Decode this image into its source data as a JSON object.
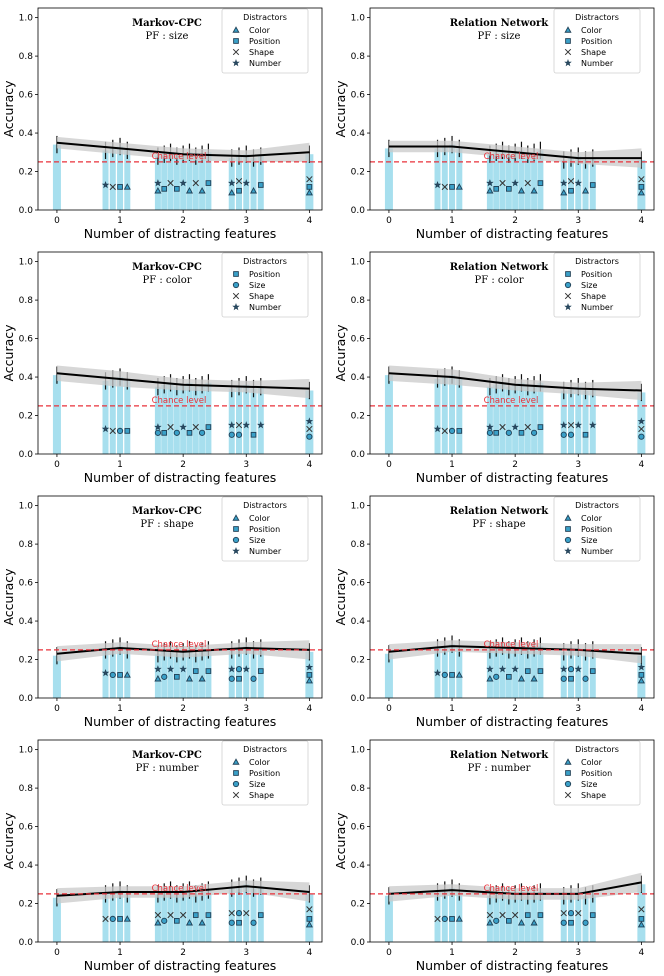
{
  "colors": {
    "bar": "#a7dfee",
    "marker": "#3aa0c8",
    "marker_edge": "#1f3f55",
    "line": "#000000",
    "band": "#c9c9c9",
    "chance": "#e8313a"
  },
  "common": {
    "xlabel": "Number of distracting features",
    "ylabel": "Accuracy",
    "chance_label": "Chance level",
    "legend_title": "Distractors",
    "x_ticks": [
      "0",
      "1",
      "2",
      "3",
      "4"
    ],
    "y_ticks": [
      "0.0",
      "0.2",
      "0.4",
      "0.6",
      "0.8",
      "1.0"
    ],
    "ylim": [
      0,
      1.05
    ],
    "xlim": [
      -0.3,
      4.2
    ],
    "chance_value": 0.25
  },
  "chart_data": [
    {
      "type": "bar",
      "model": "Markov-CPC",
      "pf_label": "PF : size",
      "distractors": [
        "Color",
        "Position",
        "Shape",
        "Number"
      ],
      "x": [
        0,
        1,
        2,
        3,
        4
      ],
      "mean_curve": [
        0.35,
        0.32,
        0.29,
        0.28,
        0.3
      ],
      "band": [
        0.03,
        0.03,
        0.03,
        0.03,
        0.05
      ],
      "marker_points": [
        [
          {
            "m": "star",
            "y": 0.13
          },
          {
            "m": "x",
            "y": 0.12
          },
          {
            "m": "square",
            "y": 0.12
          },
          {
            "m": "triangle",
            "y": 0.12
          }
        ],
        [
          {
            "m": "star",
            "y": 0.14
          },
          {
            "m": "square",
            "y": 0.11
          },
          {
            "m": "x",
            "y": 0.14
          },
          {
            "m": "square",
            "y": 0.11
          },
          {
            "m": "star",
            "y": 0.14
          },
          {
            "m": "triangle",
            "y": 0.1
          },
          {
            "m": "x",
            "y": 0.14
          },
          {
            "m": "triangle",
            "y": 0.1
          },
          {
            "m": "square",
            "y": 0.14
          },
          {
            "m": "triangle",
            "y": 0.1
          }
        ],
        [
          {
            "m": "star",
            "y": 0.14
          },
          {
            "m": "square",
            "y": 0.1
          },
          {
            "m": "star",
            "y": 0.14
          },
          {
            "m": "triangle",
            "y": 0.1
          },
          {
            "m": "square",
            "y": 0.13
          },
          {
            "m": "triangle",
            "y": 0.09
          },
          {
            "m": "x",
            "y": 0.15
          }
        ],
        [
          {
            "m": "x",
            "y": 0.16
          },
          {
            "m": "square",
            "y": 0.12
          },
          {
            "m": "triangle",
            "y": 0.09
          }
        ]
      ]
    },
    {
      "type": "bar",
      "model": "Relation Network",
      "pf_label": "PF : size",
      "distractors": [
        "Color",
        "Position",
        "Shape",
        "Number"
      ],
      "x": [
        0,
        1,
        2,
        3,
        4
      ],
      "mean_curve": [
        0.33,
        0.33,
        0.3,
        0.27,
        0.27
      ],
      "band": [
        0.03,
        0.03,
        0.03,
        0.03,
        0.05
      ],
      "marker_points": [
        [
          {
            "m": "star",
            "y": 0.13
          },
          {
            "m": "x",
            "y": 0.12
          },
          {
            "m": "square",
            "y": 0.12
          },
          {
            "m": "triangle",
            "y": 0.12
          }
        ],
        [
          {
            "m": "star",
            "y": 0.14
          },
          {
            "m": "square",
            "y": 0.11
          },
          {
            "m": "x",
            "y": 0.14
          },
          {
            "m": "square",
            "y": 0.11
          },
          {
            "m": "star",
            "y": 0.14
          },
          {
            "m": "triangle",
            "y": 0.1
          },
          {
            "m": "x",
            "y": 0.14
          },
          {
            "m": "triangle",
            "y": 0.1
          },
          {
            "m": "square",
            "y": 0.14
          },
          {
            "m": "triangle",
            "y": 0.1
          }
        ],
        [
          {
            "m": "star",
            "y": 0.14
          },
          {
            "m": "square",
            "y": 0.1
          },
          {
            "m": "star",
            "y": 0.14
          },
          {
            "m": "triangle",
            "y": 0.1
          },
          {
            "m": "square",
            "y": 0.13
          },
          {
            "m": "triangle",
            "y": 0.09
          },
          {
            "m": "x",
            "y": 0.15
          }
        ],
        [
          {
            "m": "x",
            "y": 0.16
          },
          {
            "m": "square",
            "y": 0.12
          },
          {
            "m": "triangle",
            "y": 0.09
          }
        ]
      ]
    },
    {
      "type": "bar",
      "model": "Markov-CPC",
      "pf_label": "PF : color",
      "distractors": [
        "Position",
        "Size",
        "Shape",
        "Number"
      ],
      "x": [
        0,
        1,
        2,
        3,
        4
      ],
      "mean_curve": [
        0.42,
        0.39,
        0.36,
        0.35,
        0.34
      ],
      "band": [
        0.04,
        0.04,
        0.03,
        0.03,
        0.05
      ],
      "marker_points": [
        [
          {
            "m": "star",
            "y": 0.13
          },
          {
            "m": "x",
            "y": 0.12
          },
          {
            "m": "circle",
            "y": 0.12
          },
          {
            "m": "square",
            "y": 0.12
          }
        ],
        [
          {
            "m": "star",
            "y": 0.14
          },
          {
            "m": "square",
            "y": 0.11
          },
          {
            "m": "x",
            "y": 0.14
          },
          {
            "m": "circle",
            "y": 0.11
          },
          {
            "m": "star",
            "y": 0.14
          },
          {
            "m": "square",
            "y": 0.11
          },
          {
            "m": "x",
            "y": 0.14
          },
          {
            "m": "circle",
            "y": 0.11
          },
          {
            "m": "square",
            "y": 0.14
          },
          {
            "m": "circle",
            "y": 0.11
          }
        ],
        [
          {
            "m": "star",
            "y": 0.15
          },
          {
            "m": "circle",
            "y": 0.1
          },
          {
            "m": "star",
            "y": 0.15
          },
          {
            "m": "square",
            "y": 0.1
          },
          {
            "m": "star",
            "y": 0.15
          },
          {
            "m": "circle",
            "y": 0.1
          },
          {
            "m": "x",
            "y": 0.15
          }
        ],
        [
          {
            "m": "star",
            "y": 0.17
          },
          {
            "m": "x",
            "y": 0.13
          },
          {
            "m": "circle",
            "y": 0.09
          }
        ]
      ]
    },
    {
      "type": "bar",
      "model": "Relation Network",
      "pf_label": "PF : color",
      "distractors": [
        "Position",
        "Size",
        "Shape",
        "Number"
      ],
      "x": [
        0,
        1,
        2,
        3,
        4
      ],
      "mean_curve": [
        0.42,
        0.4,
        0.36,
        0.34,
        0.33
      ],
      "band": [
        0.04,
        0.04,
        0.03,
        0.03,
        0.05
      ],
      "marker_points": [
        [
          {
            "m": "star",
            "y": 0.13
          },
          {
            "m": "x",
            "y": 0.12
          },
          {
            "m": "circle",
            "y": 0.12
          },
          {
            "m": "square",
            "y": 0.12
          }
        ],
        [
          {
            "m": "star",
            "y": 0.14
          },
          {
            "m": "square",
            "y": 0.11
          },
          {
            "m": "x",
            "y": 0.14
          },
          {
            "m": "circle",
            "y": 0.11
          },
          {
            "m": "star",
            "y": 0.14
          },
          {
            "m": "square",
            "y": 0.11
          },
          {
            "m": "x",
            "y": 0.14
          },
          {
            "m": "circle",
            "y": 0.11
          },
          {
            "m": "square",
            "y": 0.14
          },
          {
            "m": "circle",
            "y": 0.11
          }
        ],
        [
          {
            "m": "star",
            "y": 0.15
          },
          {
            "m": "circle",
            "y": 0.1
          },
          {
            "m": "star",
            "y": 0.15
          },
          {
            "m": "square",
            "y": 0.1
          },
          {
            "m": "star",
            "y": 0.15
          },
          {
            "m": "circle",
            "y": 0.1
          },
          {
            "m": "x",
            "y": 0.15
          }
        ],
        [
          {
            "m": "star",
            "y": 0.17
          },
          {
            "m": "x",
            "y": 0.13
          },
          {
            "m": "circle",
            "y": 0.09
          }
        ]
      ]
    },
    {
      "type": "bar",
      "model": "Markov-CPC",
      "pf_label": "PF : shape",
      "distractors": [
        "Color",
        "Position",
        "Size",
        "Number"
      ],
      "x": [
        0,
        1,
        2,
        3,
        4
      ],
      "mean_curve": [
        0.23,
        0.26,
        0.24,
        0.26,
        0.25
      ],
      "band": [
        0.04,
        0.03,
        0.03,
        0.03,
        0.05
      ],
      "marker_points": [
        [
          {
            "m": "star",
            "y": 0.13
          },
          {
            "m": "circle",
            "y": 0.12
          },
          {
            "m": "square",
            "y": 0.12
          },
          {
            "m": "triangle",
            "y": 0.12
          }
        ],
        [
          {
            "m": "star",
            "y": 0.15
          },
          {
            "m": "circle",
            "y": 0.11
          },
          {
            "m": "star",
            "y": 0.15
          },
          {
            "m": "square",
            "y": 0.11
          },
          {
            "m": "star",
            "y": 0.15
          },
          {
            "m": "triangle",
            "y": 0.1
          },
          {
            "m": "square",
            "y": 0.14
          },
          {
            "m": "triangle",
            "y": 0.1
          },
          {
            "m": "square",
            "y": 0.14
          },
          {
            "m": "triangle",
            "y": 0.1
          }
        ],
        [
          {
            "m": "star",
            "y": 0.15
          },
          {
            "m": "square",
            "y": 0.1
          },
          {
            "m": "star",
            "y": 0.15
          },
          {
            "m": "circle",
            "y": 0.1
          },
          {
            "m": "square",
            "y": 0.14
          },
          {
            "m": "circle",
            "y": 0.1
          },
          {
            "m": "circle",
            "y": 0.15
          }
        ],
        [
          {
            "m": "star",
            "y": 0.16
          },
          {
            "m": "square",
            "y": 0.12
          },
          {
            "m": "triangle",
            "y": 0.09
          }
        ]
      ]
    },
    {
      "type": "bar",
      "model": "Relation Network",
      "pf_label": "PF : shape",
      "distractors": [
        "Color",
        "Position",
        "Size",
        "Number"
      ],
      "x": [
        0,
        1,
        2,
        3,
        4
      ],
      "mean_curve": [
        0.24,
        0.27,
        0.26,
        0.25,
        0.23
      ],
      "band": [
        0.04,
        0.03,
        0.03,
        0.03,
        0.05
      ],
      "marker_points": [
        [
          {
            "m": "star",
            "y": 0.13
          },
          {
            "m": "circle",
            "y": 0.12
          },
          {
            "m": "square",
            "y": 0.12
          },
          {
            "m": "triangle",
            "y": 0.12
          }
        ],
        [
          {
            "m": "star",
            "y": 0.15
          },
          {
            "m": "circle",
            "y": 0.11
          },
          {
            "m": "star",
            "y": 0.15
          },
          {
            "m": "square",
            "y": 0.11
          },
          {
            "m": "star",
            "y": 0.15
          },
          {
            "m": "triangle",
            "y": 0.1
          },
          {
            "m": "square",
            "y": 0.14
          },
          {
            "m": "triangle",
            "y": 0.1
          },
          {
            "m": "square",
            "y": 0.14
          },
          {
            "m": "triangle",
            "y": 0.1
          }
        ],
        [
          {
            "m": "star",
            "y": 0.15
          },
          {
            "m": "square",
            "y": 0.1
          },
          {
            "m": "star",
            "y": 0.15
          },
          {
            "m": "circle",
            "y": 0.1
          },
          {
            "m": "square",
            "y": 0.14
          },
          {
            "m": "circle",
            "y": 0.1
          },
          {
            "m": "circle",
            "y": 0.15
          }
        ],
        [
          {
            "m": "star",
            "y": 0.16
          },
          {
            "m": "square",
            "y": 0.12
          },
          {
            "m": "triangle",
            "y": 0.09
          }
        ]
      ]
    },
    {
      "type": "bar",
      "model": "Markov-CPC",
      "pf_label": "PF : number",
      "distractors": [
        "Color",
        "Position",
        "Size",
        "Shape"
      ],
      "x": [
        0,
        1,
        2,
        3,
        4
      ],
      "mean_curve": [
        0.24,
        0.26,
        0.26,
        0.29,
        0.26
      ],
      "band": [
        0.04,
        0.03,
        0.03,
        0.03,
        0.05
      ],
      "marker_points": [
        [
          {
            "m": "x",
            "y": 0.12
          },
          {
            "m": "circle",
            "y": 0.12
          },
          {
            "m": "square",
            "y": 0.12
          },
          {
            "m": "triangle",
            "y": 0.12
          }
        ],
        [
          {
            "m": "x",
            "y": 0.14
          },
          {
            "m": "circle",
            "y": 0.11
          },
          {
            "m": "x",
            "y": 0.14
          },
          {
            "m": "square",
            "y": 0.11
          },
          {
            "m": "x",
            "y": 0.14
          },
          {
            "m": "triangle",
            "y": 0.1
          },
          {
            "m": "square",
            "y": 0.14
          },
          {
            "m": "triangle",
            "y": 0.1
          },
          {
            "m": "square",
            "y": 0.14
          },
          {
            "m": "triangle",
            "y": 0.1
          }
        ],
        [
          {
            "m": "x",
            "y": 0.15
          },
          {
            "m": "square",
            "y": 0.1
          },
          {
            "m": "x",
            "y": 0.15
          },
          {
            "m": "circle",
            "y": 0.1
          },
          {
            "m": "square",
            "y": 0.14
          },
          {
            "m": "circle",
            "y": 0.1
          },
          {
            "m": "circle",
            "y": 0.15
          }
        ],
        [
          {
            "m": "x",
            "y": 0.17
          },
          {
            "m": "square",
            "y": 0.12
          },
          {
            "m": "triangle",
            "y": 0.09
          }
        ]
      ]
    },
    {
      "type": "bar",
      "model": "Relation Network",
      "pf_label": "PF : number",
      "distractors": [
        "Color",
        "Position",
        "Size",
        "Shape"
      ],
      "x": [
        0,
        1,
        2,
        3,
        4
      ],
      "mean_curve": [
        0.25,
        0.27,
        0.25,
        0.25,
        0.31
      ],
      "band": [
        0.04,
        0.03,
        0.03,
        0.03,
        0.05
      ],
      "marker_points": [
        [
          {
            "m": "x",
            "y": 0.12
          },
          {
            "m": "circle",
            "y": 0.12
          },
          {
            "m": "square",
            "y": 0.12
          },
          {
            "m": "triangle",
            "y": 0.12
          }
        ],
        [
          {
            "m": "x",
            "y": 0.14
          },
          {
            "m": "circle",
            "y": 0.11
          },
          {
            "m": "x",
            "y": 0.14
          },
          {
            "m": "square",
            "y": 0.11
          },
          {
            "m": "x",
            "y": 0.14
          },
          {
            "m": "triangle",
            "y": 0.1
          },
          {
            "m": "square",
            "y": 0.14
          },
          {
            "m": "triangle",
            "y": 0.1
          },
          {
            "m": "square",
            "y": 0.14
          },
          {
            "m": "triangle",
            "y": 0.1
          }
        ],
        [
          {
            "m": "x",
            "y": 0.15
          },
          {
            "m": "square",
            "y": 0.1
          },
          {
            "m": "x",
            "y": 0.15
          },
          {
            "m": "circle",
            "y": 0.1
          },
          {
            "m": "square",
            "y": 0.14
          },
          {
            "m": "circle",
            "y": 0.1
          },
          {
            "m": "circle",
            "y": 0.15
          }
        ],
        [
          {
            "m": "x",
            "y": 0.17
          },
          {
            "m": "square",
            "y": 0.12
          },
          {
            "m": "triangle",
            "y": 0.09
          }
        ]
      ]
    }
  ]
}
